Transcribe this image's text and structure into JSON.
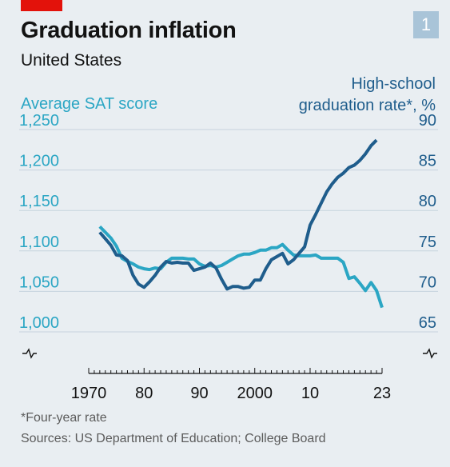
{
  "header": {
    "title": "Graduation inflation",
    "subtitle": "United States",
    "chart_number": "1"
  },
  "footer": {
    "footnote": "*Four-year rate",
    "sources": "Sources: US Department of Education; College Board"
  },
  "colors": {
    "sat_series": "#2ba6c4",
    "graduation_series": "#1f5d8c",
    "gridline": "#c6d3dd",
    "brand_red": "#e3120b"
  },
  "chart_data": {
    "type": "line",
    "title": "Graduation inflation",
    "subtitle": "United States",
    "x_range": [
      1970,
      2023
    ],
    "x_ticks": [
      {
        "value": 1970,
        "label": "1970"
      },
      {
        "value": 1980,
        "label": "80"
      },
      {
        "value": 1990,
        "label": "90"
      },
      {
        "value": 2000,
        "label": "2000"
      },
      {
        "value": 2010,
        "label": "10"
      },
      {
        "value": 2023,
        "label": "23"
      }
    ],
    "left_axis": {
      "label": "Average SAT score",
      "range": [
        1000,
        1250
      ],
      "ticks": [
        "1,250",
        "1,200",
        "1,150",
        "1,100",
        "1,050",
        "1,000"
      ],
      "tick_values": [
        1250,
        1200,
        1150,
        1100,
        1050,
        1000
      ],
      "broken": true
    },
    "right_axis": {
      "label": "High-school graduation rate*, %",
      "label_lines": [
        "High-school",
        "graduation rate*, %"
      ],
      "range": [
        65,
        90
      ],
      "ticks": [
        "90",
        "85",
        "80",
        "75",
        "70",
        "65"
      ],
      "tick_values": [
        90,
        85,
        80,
        75,
        70,
        65
      ],
      "broken": true
    },
    "grid": true,
    "legend": "none (axis labels colored by series)",
    "series": [
      {
        "name": "Average SAT score",
        "axis": "left",
        "x": [
          1972,
          1973,
          1974,
          1975,
          1976,
          1977,
          1978,
          1979,
          1980,
          1981,
          1982,
          1983,
          1984,
          1985,
          1986,
          1987,
          1988,
          1989,
          1990,
          1991,
          1992,
          1993,
          1994,
          1995,
          1996,
          1997,
          1998,
          1999,
          2000,
          2001,
          2002,
          2003,
          2004,
          2005,
          2006,
          2007,
          2008,
          2009,
          2010,
          2011,
          2012,
          2013,
          2014,
          2015,
          2016,
          2017,
          2018,
          2019,
          2020,
          2021,
          2022,
          2023
        ],
        "values": [
          1130,
          1123,
          1116,
          1106,
          1091,
          1087,
          1084,
          1080,
          1078,
          1077,
          1079,
          1078,
          1086,
          1091,
          1091,
          1091,
          1090,
          1090,
          1084,
          1081,
          1082,
          1080,
          1082,
          1086,
          1090,
          1094,
          1096,
          1096,
          1098,
          1101,
          1101,
          1104,
          1104,
          1108,
          1101,
          1095,
          1094,
          1094,
          1094,
          1095,
          1091,
          1091,
          1091,
          1091,
          1086,
          1066,
          1068,
          1060,
          1051,
          1061,
          1051,
          1030
        ]
      },
      {
        "name": "High-school graduation rate*, %",
        "axis": "right",
        "x": [
          1972,
          1973,
          1974,
          1975,
          1976,
          1977,
          1978,
          1979,
          1980,
          1981,
          1982,
          1983,
          1984,
          1985,
          1986,
          1987,
          1988,
          1989,
          1990,
          1991,
          1992,
          1993,
          1994,
          1995,
          1996,
          1997,
          1998,
          1999,
          2000,
          2001,
          2002,
          2003,
          2004,
          2005,
          2006,
          2007,
          2008,
          2009,
          2010,
          2011,
          2012,
          2013,
          2014,
          2015,
          2016,
          2017,
          2018,
          2019,
          2020,
          2021,
          2022
        ],
        "values": [
          77.3,
          76.5,
          75.7,
          74.5,
          74.4,
          73.8,
          72.0,
          70.9,
          70.5,
          71.2,
          72.0,
          73.0,
          73.7,
          73.5,
          73.6,
          73.5,
          73.5,
          72.6,
          72.8,
          73.0,
          73.5,
          72.9,
          71.5,
          70.3,
          70.6,
          70.6,
          70.4,
          70.5,
          71.4,
          71.4,
          72.8,
          73.9,
          74.3,
          74.7,
          73.4,
          73.9,
          74.7,
          75.5,
          78.2,
          79.5,
          80.9,
          82.3,
          83.3,
          84.1,
          84.6,
          85.3,
          85.6,
          86.2,
          87.0,
          88.0,
          88.7
        ]
      }
    ]
  }
}
